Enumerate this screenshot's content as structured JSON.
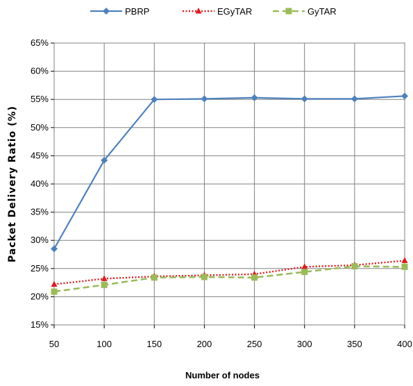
{
  "chart_data": {
    "type": "line",
    "title": "",
    "xlabel": "Number of nodes",
    "ylabel": "Packet Delivery Ratio (%)",
    "x": [
      50,
      100,
      150,
      200,
      250,
      300,
      350,
      400
    ],
    "x_tick_labels": [
      "50",
      "100",
      "150",
      "200",
      "250",
      "300",
      "350",
      "400"
    ],
    "ylim": [
      15,
      65
    ],
    "y_ticks": [
      15,
      20,
      25,
      30,
      35,
      40,
      45,
      50,
      55,
      60,
      65
    ],
    "y_tick_labels": [
      "15%",
      "20%",
      "25%",
      "30%",
      "35%",
      "40%",
      "45%",
      "50%",
      "55%",
      "60%",
      "65%"
    ],
    "grid": true,
    "legend_position": "top",
    "series": [
      {
        "name": "PBRP",
        "color": "#4f81bd",
        "marker": "diamond",
        "line": "solid",
        "values": [
          28.5,
          44.2,
          55.0,
          55.1,
          55.3,
          55.1,
          55.1,
          55.6
        ]
      },
      {
        "name": "EGyTAR",
        "color": "#e31a1c",
        "marker": "triangle",
        "line": "dotted",
        "values": [
          22.2,
          23.2,
          23.6,
          23.8,
          24.0,
          25.3,
          25.6,
          26.4
        ]
      },
      {
        "name": "GyTAR",
        "color": "#9bbb59",
        "marker": "square",
        "line": "dashed",
        "values": [
          20.9,
          22.1,
          23.4,
          23.5,
          23.4,
          24.4,
          25.4,
          25.3
        ]
      }
    ]
  }
}
